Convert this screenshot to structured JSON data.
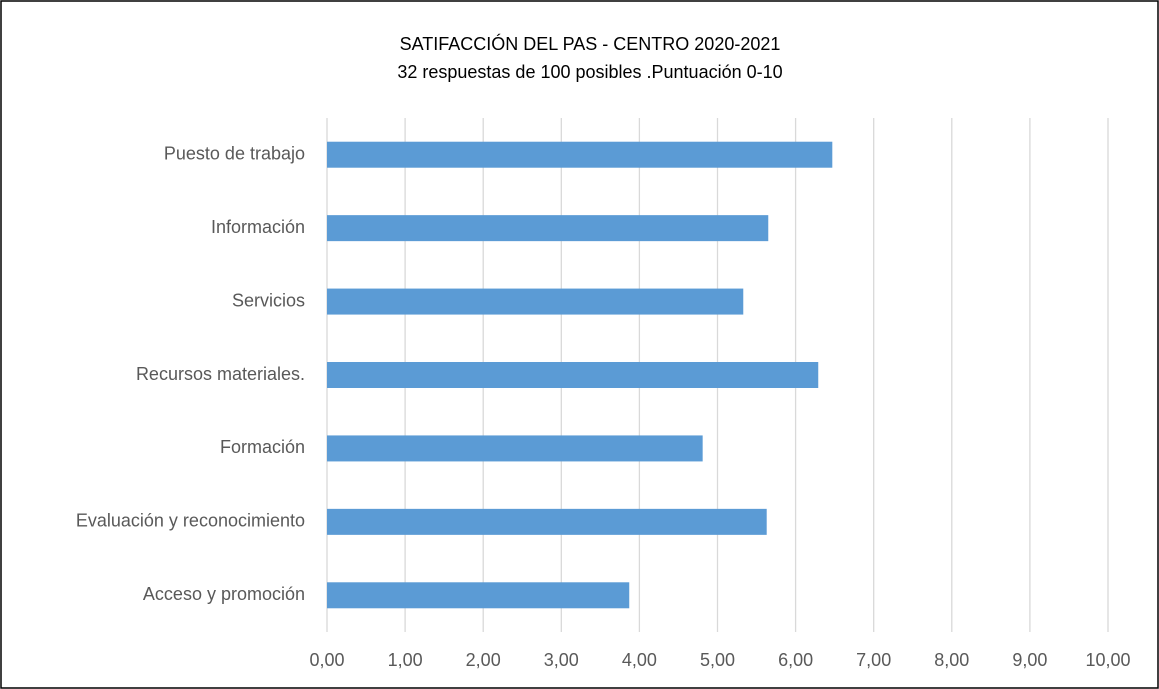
{
  "chart_data": {
    "type": "bar",
    "orientation": "horizontal",
    "title": "SATIFACCIÓN DEL PAS - CENTRO 2020-2021",
    "subtitle": "32 respuestas de 100 posibles .Puntuación 0-10",
    "categories": [
      "Puesto de trabajo",
      "Información",
      "Servicios",
      "Recursos materiales.",
      "Formación",
      "Evaluación y reconocimiento",
      "Acceso y promoción"
    ],
    "values": [
      6.47,
      5.65,
      5.33,
      6.29,
      4.81,
      5.63,
      3.87
    ],
    "color": "#5b9bd5",
    "xlim": [
      0,
      10
    ],
    "xticks": [
      {
        "value": 0,
        "label": "0,00"
      },
      {
        "value": 1,
        "label": "1,00"
      },
      {
        "value": 2,
        "label": "2,00"
      },
      {
        "value": 3,
        "label": "3,00"
      },
      {
        "value": 4,
        "label": "4,00"
      },
      {
        "value": 5,
        "label": "5,00"
      },
      {
        "value": 6,
        "label": "6,00"
      },
      {
        "value": 7,
        "label": "7,00"
      },
      {
        "value": 8,
        "label": "8,00"
      },
      {
        "value": 9,
        "label": "9,00"
      },
      {
        "value": 10,
        "label": "10,00"
      }
    ],
    "grid": true
  }
}
